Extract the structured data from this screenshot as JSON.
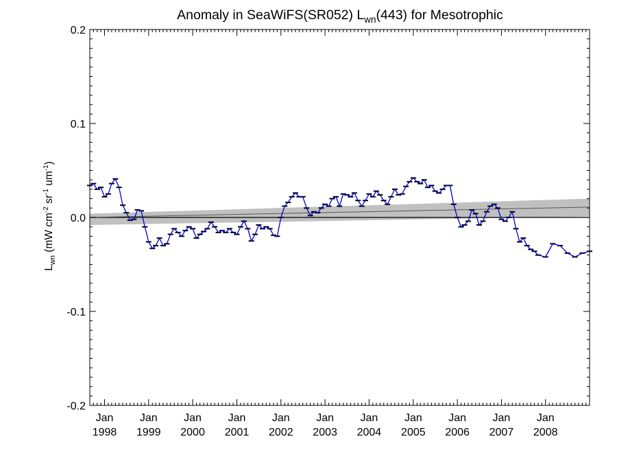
{
  "chart_data": {
    "type": "scatter",
    "title": {
      "main": "Anomaly in SeaWiFS(SR052) L",
      "sub": "wn",
      "tail": "(443) for Mesotrophic"
    },
    "ylabel": {
      "main": "L",
      "sub": "wn",
      "units": " (mW cm",
      "sup1": "-2",
      "u2": " sr",
      "sup2": "-1",
      "u3": " um",
      "sup3": "-1",
      "close": ")"
    },
    "xlim": [
      "1997-09-01",
      "2008-12-31"
    ],
    "ylim": [
      -0.2,
      0.2
    ],
    "y_ticks": [
      {
        "value": 0.2,
        "label": "0.2"
      },
      {
        "value": 0.1,
        "label": "0.1"
      },
      {
        "value": 0.0,
        "label": "0.0"
      },
      {
        "value": -0.1,
        "label": "-0.1"
      },
      {
        "value": -0.2,
        "label": "-0.2"
      }
    ],
    "x_ticks": [
      {
        "date": "1998-01-01",
        "month": "Jan",
        "year": "1998"
      },
      {
        "date": "1999-01-01",
        "month": "Jan",
        "year": "1999"
      },
      {
        "date": "2000-01-01",
        "month": "Jan",
        "year": "2000"
      },
      {
        "date": "2001-01-01",
        "month": "Jan",
        "year": "2001"
      },
      {
        "date": "2002-01-01",
        "month": "Jan",
        "year": "2002"
      },
      {
        "date": "2003-01-01",
        "month": "Jan",
        "year": "2003"
      },
      {
        "date": "2004-01-01",
        "month": "Jan",
        "year": "2004"
      },
      {
        "date": "2005-01-01",
        "month": "Jan",
        "year": "2005"
      },
      {
        "date": "2006-01-01",
        "month": "Jan",
        "year": "2006"
      },
      {
        "date": "2007-01-01",
        "month": "Jan",
        "year": "2007"
      },
      {
        "date": "2008-01-01",
        "month": "Jan",
        "year": "2008"
      }
    ],
    "zero_line": 0.0,
    "trend": {
      "start": [
        "1997-09-01",
        0.0
      ],
      "end": [
        "2008-12-31",
        0.011
      ]
    },
    "confidence_band": {
      "start": [
        -0.008,
        0.004
      ],
      "end": [
        0.001,
        0.02
      ]
    },
    "series": [
      {
        "color": "#0000cc",
        "points": [
          [
            "1997-09-01",
            0.034
          ],
          [
            "1997-10-01",
            0.036
          ],
          [
            "1997-11-01",
            0.03
          ],
          [
            "1997-12-01",
            0.032
          ],
          [
            "1998-01-01",
            0.022
          ],
          [
            "1998-02-01",
            0.025
          ],
          [
            "1998-03-01",
            0.036
          ],
          [
            "1998-04-01",
            0.041
          ],
          [
            "1998-05-01",
            0.032
          ],
          [
            "1998-06-01",
            0.013
          ],
          [
            "1998-07-01",
            0.005
          ],
          [
            "1998-08-01",
            -0.003
          ],
          [
            "1998-09-01",
            -0.002
          ],
          [
            "1998-10-01",
            0.008
          ],
          [
            "1998-11-01",
            0.007
          ],
          [
            "1998-12-01",
            -0.01
          ],
          [
            "1999-01-01",
            -0.026
          ],
          [
            "1999-02-01",
            -0.033
          ],
          [
            "1999-03-01",
            -0.03
          ],
          [
            "1999-04-01",
            -0.022
          ],
          [
            "1999-05-01",
            -0.03
          ],
          [
            "1999-06-01",
            -0.028
          ],
          [
            "1999-07-01",
            -0.018
          ],
          [
            "1999-08-01",
            -0.012
          ],
          [
            "1999-09-01",
            -0.016
          ],
          [
            "1999-10-01",
            -0.02
          ],
          [
            "1999-11-01",
            -0.014
          ],
          [
            "1999-12-01",
            -0.01
          ],
          [
            "2000-01-01",
            -0.012
          ],
          [
            "2000-02-01",
            -0.022
          ],
          [
            "2000-03-01",
            -0.018
          ],
          [
            "2000-04-01",
            -0.015
          ],
          [
            "2000-05-01",
            -0.012
          ],
          [
            "2000-06-01",
            -0.005
          ],
          [
            "2000-07-01",
            -0.01
          ],
          [
            "2000-08-01",
            -0.016
          ],
          [
            "2000-09-01",
            -0.014
          ],
          [
            "2000-10-01",
            -0.016
          ],
          [
            "2000-11-01",
            -0.012
          ],
          [
            "2000-12-01",
            -0.016
          ],
          [
            "2001-01-01",
            -0.018
          ],
          [
            "2001-02-01",
            -0.01
          ],
          [
            "2001-03-01",
            -0.004
          ],
          [
            "2001-04-01",
            -0.012
          ],
          [
            "2001-05-01",
            -0.025
          ],
          [
            "2001-06-01",
            -0.018
          ],
          [
            "2001-07-01",
            -0.008
          ],
          [
            "2001-08-01",
            -0.012
          ],
          [
            "2001-09-01",
            -0.01
          ],
          [
            "2001-10-01",
            -0.012
          ],
          [
            "2001-11-01",
            -0.019
          ],
          [
            "2001-12-01",
            -0.02
          ],
          [
            "2002-01-01",
            0.0
          ],
          [
            "2002-02-01",
            0.012
          ],
          [
            "2002-03-01",
            0.016
          ],
          [
            "2002-04-01",
            0.022
          ],
          [
            "2002-05-01",
            0.026
          ],
          [
            "2002-06-01",
            0.022
          ],
          [
            "2002-07-01",
            0.022
          ],
          [
            "2002-08-01",
            0.01
          ],
          [
            "2002-09-01",
            0.002
          ],
          [
            "2002-10-01",
            0.006
          ],
          [
            "2002-11-01",
            0.005
          ],
          [
            "2002-12-01",
            0.01
          ],
          [
            "2003-01-01",
            0.014
          ],
          [
            "2003-02-01",
            0.012
          ],
          [
            "2003-03-01",
            0.02
          ],
          [
            "2003-04-01",
            0.022
          ],
          [
            "2003-05-01",
            0.012
          ],
          [
            "2003-06-01",
            0.025
          ],
          [
            "2003-07-01",
            0.024
          ],
          [
            "2003-08-01",
            0.022
          ],
          [
            "2003-09-01",
            0.026
          ],
          [
            "2003-10-01",
            0.018
          ],
          [
            "2003-11-01",
            0.012
          ],
          [
            "2003-12-01",
            0.018
          ],
          [
            "2004-01-01",
            0.025
          ],
          [
            "2004-02-01",
            0.022
          ],
          [
            "2004-03-01",
            0.028
          ],
          [
            "2004-04-01",
            0.024
          ],
          [
            "2004-05-01",
            0.018
          ],
          [
            "2004-06-01",
            0.014
          ],
          [
            "2004-07-01",
            0.022
          ],
          [
            "2004-08-01",
            0.03
          ],
          [
            "2004-09-01",
            0.024
          ],
          [
            "2004-10-01",
            0.025
          ],
          [
            "2004-11-01",
            0.033
          ],
          [
            "2004-12-01",
            0.038
          ],
          [
            "2005-01-01",
            0.042
          ],
          [
            "2005-02-01",
            0.038
          ],
          [
            "2005-03-01",
            0.036
          ],
          [
            "2005-04-01",
            0.04
          ],
          [
            "2005-05-01",
            0.032
          ],
          [
            "2005-06-01",
            0.034
          ],
          [
            "2005-07-01",
            0.028
          ],
          [
            "2005-08-01",
            0.026
          ],
          [
            "2005-09-01",
            0.03
          ],
          [
            "2005-10-01",
            0.034
          ],
          [
            "2005-11-01",
            0.034
          ],
          [
            "2005-12-01",
            0.014
          ],
          [
            "2006-01-01",
            0.0
          ],
          [
            "2006-02-01",
            -0.01
          ],
          [
            "2006-03-01",
            -0.008
          ],
          [
            "2006-04-01",
            -0.004
          ],
          [
            "2006-05-01",
            0.008
          ],
          [
            "2006-06-01",
            0.004
          ],
          [
            "2006-07-01",
            -0.008
          ],
          [
            "2006-08-01",
            -0.004
          ],
          [
            "2006-09-01",
            0.006
          ],
          [
            "2006-10-01",
            0.012
          ],
          [
            "2006-11-01",
            0.014
          ],
          [
            "2006-12-01",
            0.01
          ],
          [
            "2007-01-01",
            -0.002
          ],
          [
            "2007-02-01",
            -0.004
          ],
          [
            "2007-03-01",
            0.0
          ],
          [
            "2007-04-01",
            0.006
          ],
          [
            "2007-05-01",
            -0.012
          ],
          [
            "2007-06-01",
            -0.026
          ],
          [
            "2007-07-01",
            -0.022
          ],
          [
            "2007-08-01",
            -0.03
          ],
          [
            "2007-09-01",
            -0.034
          ],
          [
            "2007-10-01",
            -0.036
          ],
          [
            "2007-11-01",
            -0.04
          ],
          [
            "2008-01-01",
            -0.042
          ],
          [
            "2008-03-01",
            -0.028
          ],
          [
            "2008-05-01",
            -0.03
          ],
          [
            "2008-07-01",
            -0.038
          ],
          [
            "2008-09-01",
            -0.042
          ],
          [
            "2008-11-01",
            -0.038
          ],
          [
            "2008-12-31",
            -0.036
          ]
        ]
      }
    ]
  }
}
